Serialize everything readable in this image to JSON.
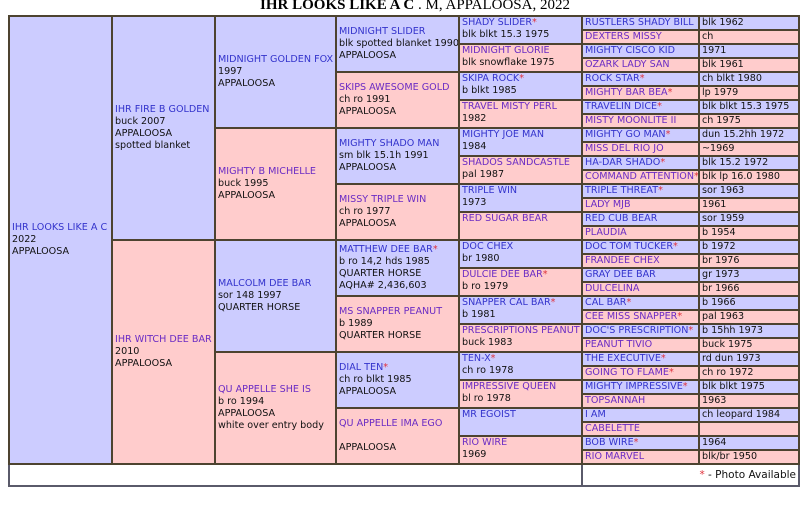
{
  "title": {
    "name": "IHR LOOKS LIKE A C",
    "rest": " . M, APPALOOSA, 2022"
  },
  "colors": {
    "sire_bg": "#ccccff",
    "dam_bg": "#ffcccc",
    "photo_star": "#e0303a"
  },
  "gen1": [
    {
      "name": "IHR LOOKS LIKE A C",
      "lines": [
        "2022",
        "APPALOOSA"
      ]
    }
  ],
  "gen2": [
    {
      "name": "IHR FIRE B GOLDEN",
      "lines": [
        "buck 2007",
        "APPALOOSA",
        "spotted blanket"
      ]
    },
    {
      "name": "IHR WITCH DEE BAR",
      "lines": [
        "2010",
        "APPALOOSA"
      ]
    }
  ],
  "gen3": [
    {
      "name": "MIDNIGHT GOLDEN FOX",
      "lines": [
        "1997",
        "APPALOOSA"
      ]
    },
    {
      "name": "MIGHTY B MICHELLE",
      "lines": [
        "buck 1995",
        "APPALOOSA"
      ]
    },
    {
      "name": "MALCOLM DEE BAR",
      "lines": [
        "sor 148 1997",
        "QUARTER HORSE"
      ]
    },
    {
      "name": "QU APPELLE SHE IS",
      "lines": [
        "b ro 1994",
        "APPALOOSA",
        "white over entry body"
      ]
    }
  ],
  "gen4": [
    {
      "name": "MIDNIGHT SLIDER",
      "lines": [
        "blk spotted blanket 1990",
        "APPALOOSA"
      ]
    },
    {
      "name": "SKIPS AWESOME GOLD",
      "lines": [
        "ch ro 1991",
        "APPALOOSA"
      ]
    },
    {
      "name": "MIGHTY SHADO MAN",
      "lines": [
        "sm blk 15.1h 1991",
        "APPALOOSA"
      ]
    },
    {
      "name": "MISSY TRIPLE WIN",
      "lines": [
        "ch ro 1977",
        "APPALOOSA"
      ]
    },
    {
      "name": "MATTHEW DEE BAR",
      "photo": true,
      "lines": [
        "b ro 14,2 hds 1985",
        "QUARTER HORSE",
        "AQHA# 2,436,603"
      ]
    },
    {
      "name": "MS SNAPPER PEANUT",
      "lines": [
        "b 1989",
        "QUARTER HORSE"
      ]
    },
    {
      "name": "DIAL TEN",
      "photo": true,
      "lines": [
        "ch ro blkt 1985",
        "APPALOOSA"
      ]
    },
    {
      "name": "QU APPELLE IMA EGO",
      "lines": [
        "",
        "APPALOOSA"
      ]
    }
  ],
  "gen5": [
    {
      "name": "SHADY SLIDER",
      "photo": true,
      "lines": [
        "blk blkt 15.3 1975"
      ]
    },
    {
      "name": "MIDNIGHT GLORIE",
      "lines": [
        "blk snowflake 1975"
      ]
    },
    {
      "name": "SKIPA ROCK",
      "photo": true,
      "lines": [
        "b blkt 1985"
      ]
    },
    {
      "name": "TRAVEL MISTY PERL",
      "lines": [
        "1982"
      ]
    },
    {
      "name": "MIGHTY JOE MAN",
      "lines": [
        "1984"
      ]
    },
    {
      "name": "SHADOS SANDCASTLE",
      "lines": [
        "pal 1987"
      ]
    },
    {
      "name": "TRIPLE WIN",
      "lines": [
        "1973"
      ]
    },
    {
      "name": "RED SUGAR BEAR",
      "lines": []
    },
    {
      "name": "DOC CHEX",
      "lines": [
        "br 1980"
      ]
    },
    {
      "name": "DULCIE DEE BAR",
      "photo": true,
      "lines": [
        "b ro 1979"
      ]
    },
    {
      "name": "SNAPPER CAL BAR",
      "photo": true,
      "lines": [
        "b 1981"
      ]
    },
    {
      "name": "PRESCRIPTIONS PEANUT",
      "lines": [
        "buck 1983"
      ]
    },
    {
      "name": "TEN-X",
      "photo": true,
      "lines": [
        "ch ro 1978"
      ]
    },
    {
      "name": "IMPRESSIVE QUEEN",
      "lines": [
        "bl ro 1978"
      ]
    },
    {
      "name": "MR EGOIST",
      "lines": []
    },
    {
      "name": "RIO WIRE",
      "lines": [
        "1969"
      ]
    }
  ],
  "gen6": [
    {
      "name": "RUSTLERS SHADY BILL",
      "details": "blk 1962"
    },
    {
      "name": "DEXTERS MISSY",
      "details": "ch"
    },
    {
      "name": "MIGHTY CISCO KID",
      "details": "1971"
    },
    {
      "name": "OZARK LADY SAN",
      "details": "blk 1961"
    },
    {
      "name": "ROCK STAR",
      "photo": true,
      "details": "ch blkt 1980"
    },
    {
      "name": "MIGHTY BAR BEA",
      "photo": true,
      "details": "lp 1979"
    },
    {
      "name": "TRAVELIN DICE",
      "photo": true,
      "details": "blk blkt 15.3 1975"
    },
    {
      "name": "MISTY MOONLITE II",
      "details": "ch 1975"
    },
    {
      "name": "MIGHTY GO MAN",
      "photo": true,
      "details": "dun 15.2hh 1972"
    },
    {
      "name": "MISS DEL RIO JO",
      "details": "~1969"
    },
    {
      "name": "HA-DAR SHADO",
      "photo": true,
      "details": "blk 15.2 1972"
    },
    {
      "name": "COMMAND ATTENTION",
      "photo": true,
      "details": "blk lp 16.0 1980"
    },
    {
      "name": "TRIPLE THREAT",
      "photo": true,
      "details": "sor 1963"
    },
    {
      "name": "LADY MJB",
      "details": "1961"
    },
    {
      "name": "RED CUB BEAR",
      "details": "sor 1959"
    },
    {
      "name": "PLAUDIA",
      "details": "b 1954"
    },
    {
      "name": "DOC TOM TUCKER",
      "photo": true,
      "details": "b 1972"
    },
    {
      "name": "FRANDEE CHEX",
      "details": "br 1976"
    },
    {
      "name": "GRAY DEE BAR",
      "details": "gr 1973"
    },
    {
      "name": "DULCELINA",
      "details": "br 1966"
    },
    {
      "name": "CAL BAR",
      "photo": true,
      "details": "b 1966"
    },
    {
      "name": "CEE MISS SNAPPER",
      "photo": true,
      "details": "pal 1963"
    },
    {
      "name": "DOC'S PRESCRIPTION",
      "photo": true,
      "details": "b 15hh 1973"
    },
    {
      "name": "PEANUT TIVIO",
      "details": "buck 1975"
    },
    {
      "name": "THE EXECUTIVE",
      "photo": true,
      "details": "rd dun 1973"
    },
    {
      "name": "GOING TO FLAME",
      "photo": true,
      "details": "ch ro 1972"
    },
    {
      "name": "MIGHTY IMPRESSIVE",
      "photo": true,
      "details": "blk blkt 1975"
    },
    {
      "name": "TOPSANNAH",
      "details": "1963"
    },
    {
      "name": "I AM",
      "details": "ch leopard 1984"
    },
    {
      "name": "CABELETTE",
      "details": ""
    },
    {
      "name": "BOB WIRE",
      "photo": true,
      "details": "1964"
    },
    {
      "name": "RIO MARVEL",
      "details": "blk/br 1950"
    }
  ],
  "legend": {
    "star": "*",
    "text": " - Photo Available"
  }
}
